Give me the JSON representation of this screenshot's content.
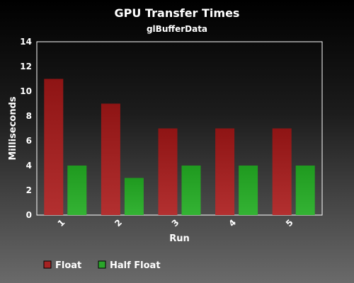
{
  "chart_data": {
    "type": "bar",
    "title": "GPU Transfer Times",
    "subtitle": "glBufferData",
    "xlabel": "Run",
    "ylabel": "Milliseconds",
    "categories": [
      "1",
      "2",
      "3",
      "4",
      "5"
    ],
    "series": [
      {
        "name": "Float",
        "values": [
          11,
          9,
          7,
          7,
          7
        ],
        "color": "#a52222"
      },
      {
        "name": "Half Float",
        "values": [
          4,
          3,
          4,
          4,
          4
        ],
        "color": "#2aa52a"
      }
    ],
    "ylim": [
      0,
      14
    ],
    "yticks": [
      0,
      2,
      4,
      6,
      8,
      10,
      12,
      14
    ],
    "grid": false,
    "legend_position": "bottom-left"
  }
}
